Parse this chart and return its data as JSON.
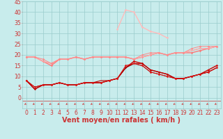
{
  "xlabel": "Vent moyen/en rafales ( km/h )",
  "ylim": [
    -5,
    45
  ],
  "xlim": [
    -0.5,
    23.5
  ],
  "yticks": [
    0,
    5,
    10,
    15,
    20,
    25,
    30,
    35,
    40,
    45
  ],
  "xticks": [
    0,
    1,
    2,
    3,
    4,
    5,
    6,
    7,
    8,
    9,
    10,
    11,
    12,
    13,
    14,
    15,
    16,
    17,
    18,
    19,
    20,
    21,
    22,
    23
  ],
  "bg_color": "#c8ecec",
  "grid_color": "#99cccc",
  "line_color": "#cc3333",
  "series": [
    {
      "x": [
        0,
        1,
        2,
        3,
        4,
        5,
        6,
        7,
        8,
        9,
        10,
        11,
        12,
        13,
        14,
        15,
        16,
        17,
        18,
        19,
        20,
        21,
        22,
        23
      ],
      "y": [
        8,
        4,
        6,
        6,
        7,
        6,
        6,
        7,
        7,
        7,
        8,
        9,
        14,
        17,
        16,
        13,
        12,
        11,
        9,
        9,
        10,
        11,
        13,
        15
      ],
      "color": "#cc0000",
      "lw": 1.0,
      "marker": "D",
      "ms": 1.5
    },
    {
      "x": [
        0,
        1,
        2,
        3,
        4,
        5,
        6,
        7,
        8,
        9,
        10,
        11,
        12,
        13,
        14,
        15,
        16,
        17,
        18,
        19,
        20,
        21,
        22,
        23
      ],
      "y": [
        8,
        4,
        6,
        6,
        7,
        6,
        6,
        7,
        7,
        8,
        8,
        9,
        14,
        16,
        16,
        13,
        12,
        11,
        9,
        9,
        10,
        11,
        12,
        14
      ],
      "color": "#bb0000",
      "lw": 0.8,
      "marker": null,
      "ms": 0
    },
    {
      "x": [
        0,
        1,
        2,
        3,
        4,
        5,
        6,
        7,
        8,
        9,
        10,
        11,
        12,
        13,
        14,
        15,
        16,
        17,
        18,
        19,
        20,
        21,
        22,
        23
      ],
      "y": [
        8,
        5,
        6,
        6,
        7,
        6,
        6,
        7,
        7,
        7,
        8,
        9,
        14,
        16,
        15,
        12,
        11,
        10,
        9,
        9,
        10,
        11,
        12,
        14
      ],
      "color": "#990000",
      "lw": 0.7,
      "marker": null,
      "ms": 0
    },
    {
      "x": [
        0,
        1,
        2,
        3,
        4,
        5,
        6,
        7,
        8,
        9,
        10,
        11,
        12,
        13,
        14,
        15,
        16,
        17,
        18,
        19,
        20,
        21,
        22,
        23
      ],
      "y": [
        8,
        5,
        6,
        6,
        7,
        6,
        6,
        7,
        7,
        7,
        8,
        9,
        15,
        16,
        15,
        12,
        11,
        10,
        9,
        9,
        10,
        11,
        12,
        14
      ],
      "color": "#dd1111",
      "lw": 0.7,
      "marker": "D",
      "ms": 1.5
    },
    {
      "x": [
        0,
        1,
        2,
        3,
        4,
        5,
        6,
        7,
        8,
        9,
        10,
        11,
        12,
        13,
        14,
        15,
        16,
        17,
        18,
        19,
        20,
        21,
        22,
        23
      ],
      "y": [
        19,
        19,
        17,
        15,
        18,
        18,
        19,
        18,
        19,
        19,
        19,
        19,
        19,
        18,
        19,
        20,
        21,
        20,
        21,
        21,
        21,
        22,
        23,
        24
      ],
      "color": "#ff7777",
      "lw": 1.0,
      "marker": "D",
      "ms": 1.5
    },
    {
      "x": [
        0,
        1,
        2,
        3,
        4,
        5,
        6,
        7,
        8,
        9,
        10,
        11,
        12,
        13,
        14,
        15,
        16,
        17,
        18,
        19,
        20,
        21,
        22,
        23
      ],
      "y": [
        19,
        19,
        17,
        16,
        18,
        18,
        19,
        18,
        19,
        19,
        19,
        19,
        19,
        18,
        19,
        20,
        21,
        20,
        21,
        21,
        22,
        23,
        23,
        24
      ],
      "color": "#ff9999",
      "lw": 0.8,
      "marker": null,
      "ms": 0
    },
    {
      "x": [
        0,
        1,
        2,
        3,
        4,
        5,
        6,
        7,
        8,
        9,
        10,
        11,
        12,
        13,
        14,
        15,
        16,
        17,
        18,
        19,
        20,
        21,
        22,
        23
      ],
      "y": [
        19,
        19,
        17,
        16,
        18,
        18,
        19,
        18,
        19,
        19,
        19,
        19,
        19,
        18,
        19,
        20,
        21,
        20,
        21,
        21,
        22,
        23,
        23,
        24
      ],
      "color": "#ffaaaa",
      "lw": 0.7,
      "marker": null,
      "ms": 0
    },
    {
      "x": [
        0,
        1,
        2,
        3,
        4,
        5,
        6,
        7,
        8,
        9,
        10,
        11,
        12,
        13,
        14,
        15,
        16,
        17,
        18,
        19,
        20,
        21,
        22,
        23
      ],
      "y": [
        19,
        19,
        18,
        16,
        18,
        18,
        19,
        18,
        19,
        19,
        19,
        19,
        19,
        18,
        20,
        21,
        21,
        20,
        21,
        21,
        23,
        24,
        24,
        24
      ],
      "color": "#ff8888",
      "lw": 0.7,
      "marker": "D",
      "ms": 1.5
    },
    {
      "x": [
        11,
        12,
        13,
        14,
        15,
        16,
        17
      ],
      "y": [
        32,
        41,
        40,
        33,
        31,
        30,
        28
      ],
      "color": "#ffbbbb",
      "lw": 1.0,
      "marker": "D",
      "ms": 1.5
    }
  ],
  "tick_fontsize": 5.5,
  "label_fontsize": 7.0
}
